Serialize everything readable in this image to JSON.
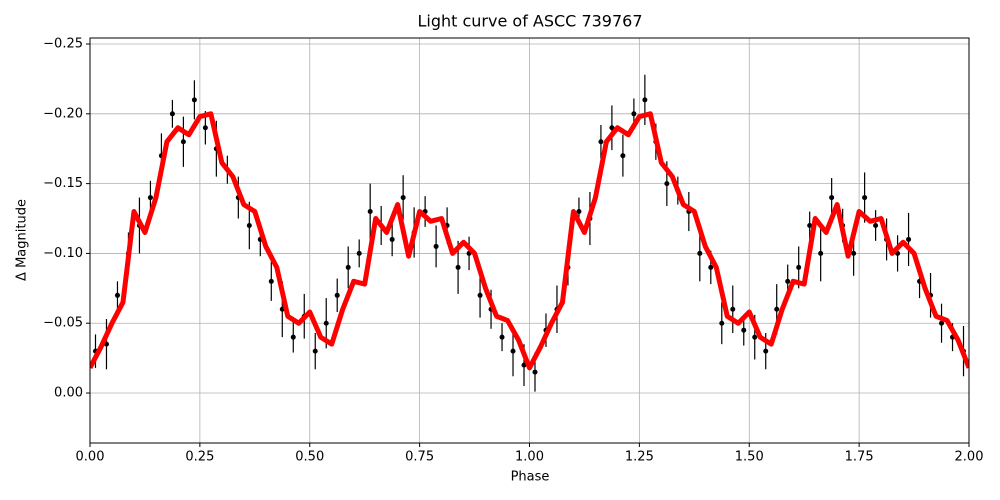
{
  "chart_data": {
    "type": "scatter",
    "title": "Light curve of ASCC 739767",
    "xlabel": "Phase",
    "ylabel": "Δ Magnitude",
    "xlim": [
      0,
      2
    ],
    "ylim": [
      0.0358,
      -0.2543
    ],
    "xticks": [
      {
        "value": 0,
        "label": "0.00"
      },
      {
        "value": 0.25,
        "label": "0.25"
      },
      {
        "value": 0.5,
        "label": "0.50"
      },
      {
        "value": 0.75,
        "label": "0.75"
      },
      {
        "value": 1,
        "label": "1.00"
      },
      {
        "value": 1.25,
        "label": "1.25"
      },
      {
        "value": 1.5,
        "label": "1.50"
      },
      {
        "value": 1.75,
        "label": "1.75"
      },
      {
        "value": 2,
        "label": "2.00"
      }
    ],
    "yticks": [
      {
        "value": 0,
        "label": "0.00"
      },
      {
        "value": -0.05,
        "label": "−0.05"
      },
      {
        "value": -0.1,
        "label": "−0.10"
      },
      {
        "value": -0.15,
        "label": "−0.15"
      },
      {
        "value": -0.2,
        "label": "−0.20"
      },
      {
        "value": -0.25,
        "label": "−0.25"
      }
    ],
    "grid": true,
    "series": [
      {
        "type": "errorbar",
        "color": "#000000",
        "x": [
          0.0125,
          0.0375,
          0.0625,
          0.0875,
          0.1125,
          0.1375,
          0.1625,
          0.1875,
          0.2125,
          0.2375,
          0.2625,
          0.2875,
          0.3125,
          0.3375,
          0.3625,
          0.3875,
          0.4125,
          0.4375,
          0.4625,
          0.4875,
          0.5125,
          0.5375,
          0.5625,
          0.5875,
          0.6125,
          0.6375,
          0.6625,
          0.6875,
          0.7125,
          0.7375,
          0.7625,
          0.7875,
          0.8125,
          0.8375,
          0.8625,
          0.8875,
          0.9125,
          0.9375,
          0.9625,
          0.9875,
          1.0125,
          1.0375,
          1.0625,
          1.0875,
          1.1125,
          1.1375,
          1.1625,
          1.1875,
          1.2125,
          1.2375,
          1.2625,
          1.2875,
          1.3125,
          1.3375,
          1.3625,
          1.3875,
          1.4125,
          1.4375,
          1.4625,
          1.4875,
          1.5125,
          1.5375,
          1.5625,
          1.5875,
          1.6125,
          1.6375,
          1.6625,
          1.6875,
          1.7125,
          1.7375,
          1.7625,
          1.7875,
          1.8125,
          1.8375,
          1.8625,
          1.8875,
          1.9125,
          1.9375,
          1.9625,
          1.9875
        ],
        "values": [
          -0.03,
          -0.035,
          -0.07,
          -0.1,
          -0.12,
          -0.14,
          -0.17,
          -0.2,
          -0.18,
          -0.21,
          -0.19,
          -0.175,
          -0.16,
          -0.14,
          -0.12,
          -0.11,
          -0.08,
          -0.06,
          -0.04,
          -0.055,
          -0.03,
          -0.05,
          -0.07,
          -0.09,
          -0.1,
          -0.13,
          -0.12,
          -0.11,
          -0.14,
          -0.115,
          -0.13,
          -0.105,
          -0.12,
          -0.09,
          -0.1,
          -0.07,
          -0.06,
          -0.04,
          -0.03,
          -0.02,
          -0.015,
          -0.045,
          -0.06,
          -0.09,
          -0.13,
          -0.125,
          -0.18,
          -0.19,
          -0.17,
          -0.2,
          -0.21,
          -0.18,
          -0.15,
          -0.145,
          -0.13,
          -0.1,
          -0.09,
          -0.05,
          -0.06,
          -0.045,
          -0.04,
          -0.03,
          -0.06,
          -0.08,
          -0.09,
          -0.12,
          -0.1,
          -0.14,
          -0.12,
          -0.1,
          -0.14,
          -0.12,
          -0.11,
          -0.1,
          -0.11,
          -0.08,
          -0.07,
          -0.05,
          -0.04,
          -0.03
        ],
        "errors": [
          0.012,
          0.018,
          0.01,
          0.015,
          0.02,
          0.012,
          0.016,
          0.01,
          0.018,
          0.014,
          0.012,
          0.02,
          0.01,
          0.015,
          0.017,
          0.012,
          0.014,
          0.02,
          0.011,
          0.016,
          0.013,
          0.018,
          0.012,
          0.015,
          0.01,
          0.02,
          0.014,
          0.012,
          0.016,
          0.018,
          0.011,
          0.015,
          0.013,
          0.019,
          0.012,
          0.016,
          0.014,
          0.01,
          0.018,
          0.015,
          0.014,
          0.012,
          0.017,
          0.013,
          0.01,
          0.019,
          0.012,
          0.016,
          0.015,
          0.011,
          0.018,
          0.013,
          0.016,
          0.01,
          0.014,
          0.02,
          0.012,
          0.015,
          0.017,
          0.011,
          0.016,
          0.013,
          0.018,
          0.012,
          0.015,
          0.01,
          0.02,
          0.014,
          0.012,
          0.016,
          0.018,
          0.011,
          0.015,
          0.013,
          0.019,
          0.012,
          0.016,
          0.014,
          0.01,
          0.018
        ]
      },
      {
        "type": "line",
        "color": "#ff0000",
        "x": [
          0,
          0.025,
          0.05,
          0.075,
          0.1,
          0.125,
          0.15,
          0.175,
          0.2,
          0.225,
          0.25,
          0.275,
          0.3,
          0.325,
          0.35,
          0.375,
          0.4,
          0.425,
          0.45,
          0.475,
          0.5,
          0.525,
          0.55,
          0.575,
          0.6,
          0.625,
          0.65,
          0.675,
          0.7,
          0.725,
          0.75,
          0.775,
          0.8,
          0.825,
          0.85,
          0.875,
          0.9,
          0.925,
          0.95,
          0.975,
          1,
          1.025,
          1.05,
          1.075,
          1.1,
          1.125,
          1.15,
          1.175,
          1.2,
          1.225,
          1.25,
          1.275,
          1.3,
          1.325,
          1.35,
          1.375,
          1.4,
          1.425,
          1.45,
          1.475,
          1.5,
          1.525,
          1.55,
          1.575,
          1.6,
          1.625,
          1.65,
          1.675,
          1.7,
          1.725,
          1.75,
          1.775,
          1.8,
          1.825,
          1.85,
          1.875,
          1.9,
          1.925,
          1.95,
          1.975,
          2
        ],
        "values": [
          -0.018,
          -0.033,
          -0.05,
          -0.065,
          -0.13,
          -0.115,
          -0.14,
          -0.18,
          -0.19,
          -0.185,
          -0.198,
          -0.2,
          -0.165,
          -0.155,
          -0.135,
          -0.13,
          -0.105,
          -0.09,
          -0.055,
          -0.05,
          -0.058,
          -0.04,
          -0.035,
          -0.06,
          -0.08,
          -0.078,
          -0.125,
          -0.115,
          -0.135,
          -0.098,
          -0.13,
          -0.123,
          -0.125,
          -0.1,
          -0.108,
          -0.1,
          -0.075,
          -0.055,
          -0.052,
          -0.038,
          -0.018,
          -0.033,
          -0.05,
          -0.065,
          -0.13,
          -0.115,
          -0.14,
          -0.18,
          -0.19,
          -0.185,
          -0.198,
          -0.2,
          -0.165,
          -0.155,
          -0.135,
          -0.13,
          -0.105,
          -0.09,
          -0.055,
          -0.05,
          -0.058,
          -0.04,
          -0.035,
          -0.06,
          -0.08,
          -0.078,
          -0.125,
          -0.115,
          -0.135,
          -0.098,
          -0.13,
          -0.123,
          -0.125,
          -0.1,
          -0.108,
          -0.1,
          -0.075,
          -0.055,
          -0.052,
          -0.038,
          -0.018
        ]
      }
    ]
  }
}
